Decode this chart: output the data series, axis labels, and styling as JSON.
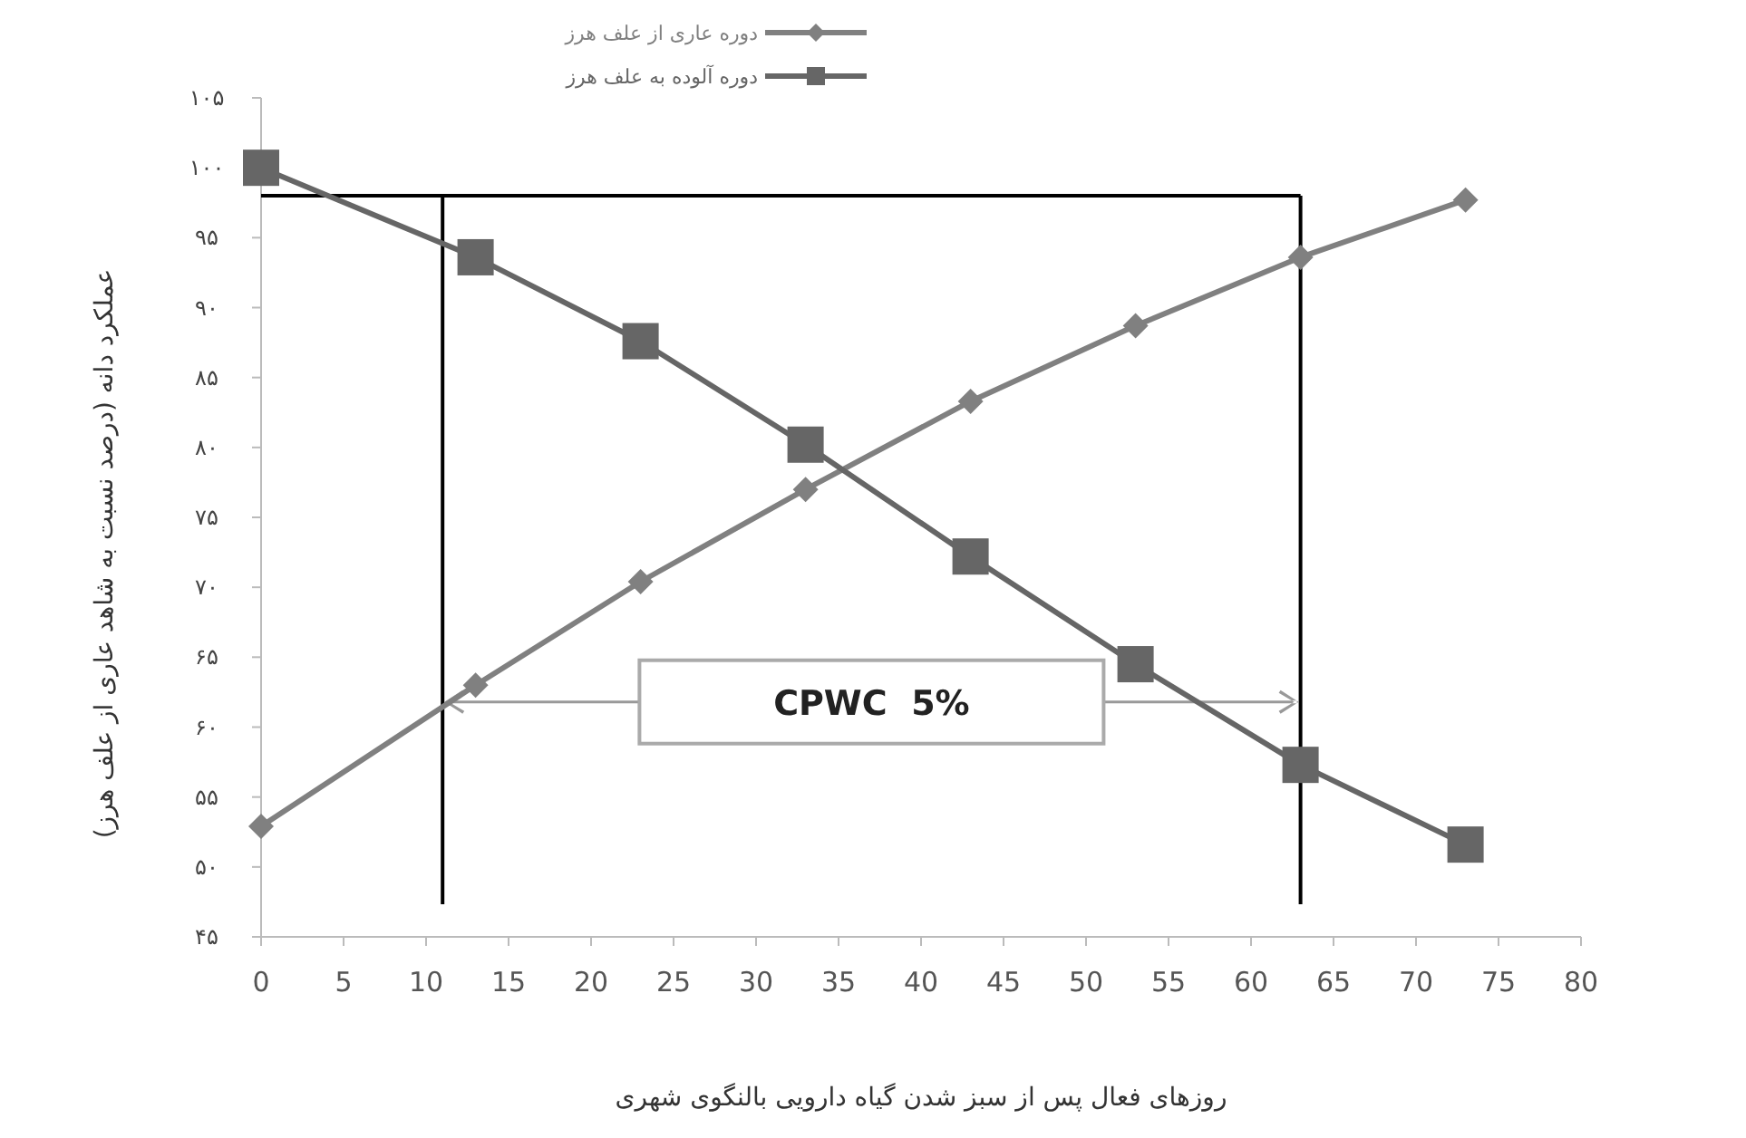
{
  "chart_data": {
    "type": "line",
    "xlabel": "روزهای فعال پس از سبز شدن گیاه دارویی بالنگوی شهری",
    "ylabel": "عملکرد دانه (درصد نسبت به شاهد عاری از علف هرز)",
    "xlim": [
      0,
      80
    ],
    "xticks": [
      0,
      5,
      10,
      15,
      20,
      25,
      30,
      35,
      40,
      45,
      50,
      55,
      60,
      65,
      70,
      75,
      80
    ],
    "ylim": [
      45,
      105
    ],
    "yticks": [
      {
        "value": 45,
        "label": "۴۵"
      },
      {
        "value": 50,
        "label": "۵۰"
      },
      {
        "value": 55,
        "label": "۵۵"
      },
      {
        "value": 60,
        "label": "۶۰"
      },
      {
        "value": 65,
        "label": "۶۵"
      },
      {
        "value": 70,
        "label": "۷۰"
      },
      {
        "value": 75,
        "label": "۷۵"
      },
      {
        "value": 80,
        "label": "۸۰"
      },
      {
        "value": 85,
        "label": "۸۵"
      },
      {
        "value": 90,
        "label": "۹۰"
      },
      {
        "value": 95,
        "label": "۹۵"
      },
      {
        "value": 100,
        "label": "۱۰۰"
      },
      {
        "value": 105,
        "label": "۱۰۵"
      }
    ],
    "x": [
      0,
      13,
      23,
      33,
      43,
      53,
      63,
      73
    ],
    "series": [
      {
        "name": "دوره عاری از علف هرز",
        "color": "#808080",
        "marker": "diamond",
        "values": [
          52.9,
          63.0,
          70.4,
          77.0,
          83.3,
          88.7,
          93.6,
          97.7
        ]
      },
      {
        "name": "دوره آلوده به علف هرز",
        "color": "#666666",
        "marker": "square",
        "values": [
          100,
          93.6,
          87.6,
          80.2,
          72.2,
          64.5,
          57.3,
          51.6
        ]
      }
    ],
    "ref_lines": [
      {
        "axis": "y",
        "value": 98,
        "color": "#000000"
      },
      {
        "axis": "x",
        "value": 11,
        "color": "#000000"
      },
      {
        "axis": "x",
        "value": 63,
        "color": "#000000"
      }
    ],
    "annotations": [
      "CPWC  5%"
    ],
    "legend": "top",
    "grid": false
  }
}
